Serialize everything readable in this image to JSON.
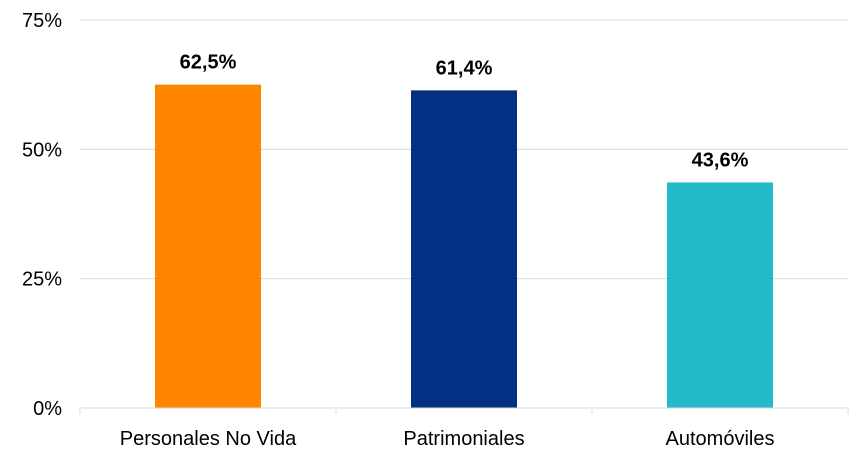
{
  "chart_data": {
    "type": "bar",
    "categories": [
      "Personales No Vida",
      "Patrimoniales",
      "Automóviles"
    ],
    "values": [
      62.5,
      61.4,
      43.6
    ],
    "data_labels": [
      "62,5%",
      "61,4%",
      "43,6%"
    ],
    "colors": [
      "#ff8400",
      "#043083",
      "#22b9c9"
    ],
    "ylim": [
      0,
      75
    ],
    "yticks": [
      0,
      25,
      50,
      75
    ],
    "ytick_labels": [
      "0%",
      "25%",
      "50%",
      "75%"
    ],
    "grid": true,
    "gridline_color": "#d9d9d9",
    "legend": "none",
    "title": "",
    "xlabel": "",
    "ylabel": ""
  }
}
